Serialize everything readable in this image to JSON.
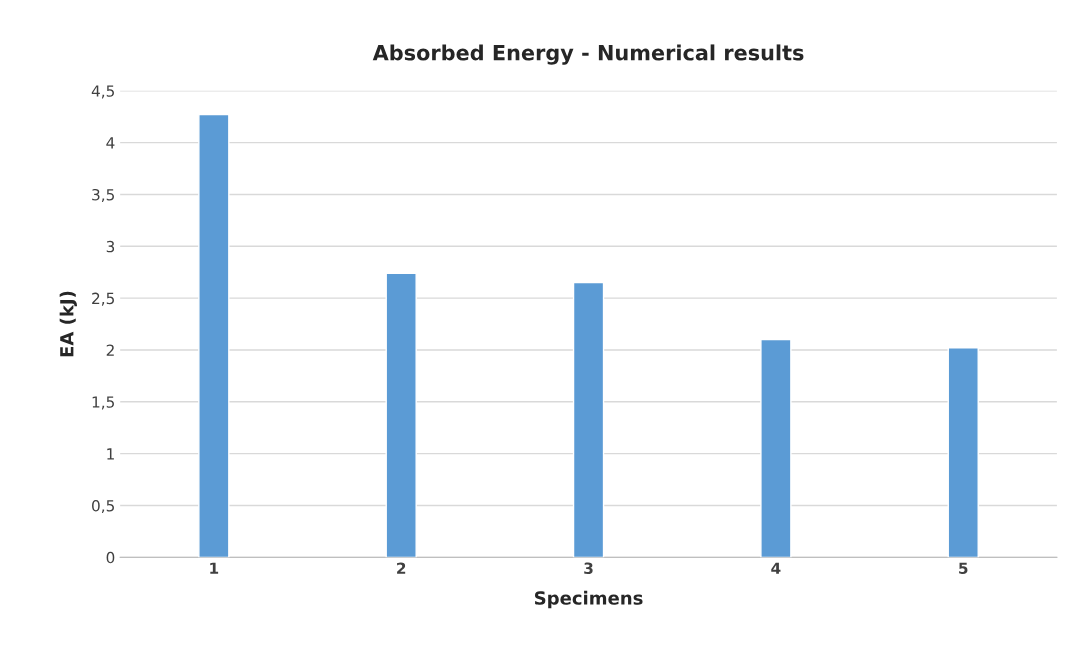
{
  "chart_data": {
    "type": "bar",
    "title": "Absorbed Energy - Numerical results",
    "xlabel": "Specimens",
    "ylabel": "EA (kJ)",
    "categories": [
      "1",
      "2",
      "3",
      "4",
      "5"
    ],
    "values": [
      4.27,
      2.74,
      2.65,
      2.1,
      2.02
    ],
    "color": "#5b9bd5",
    "ylim": [
      0,
      4.5
    ],
    "yticks": [
      0,
      {
        "value": 0.5,
        "label": "0,5"
      },
      1,
      {
        "value": 1.5,
        "label": "1,5"
      },
      2,
      {
        "value": 2.5,
        "label": "2,5"
      },
      3,
      {
        "value": 3.5,
        "label": "3,5"
      },
      4,
      {
        "value": 4.5,
        "label": "4,5"
      }
    ],
    "grid": "y",
    "legend": false
  }
}
